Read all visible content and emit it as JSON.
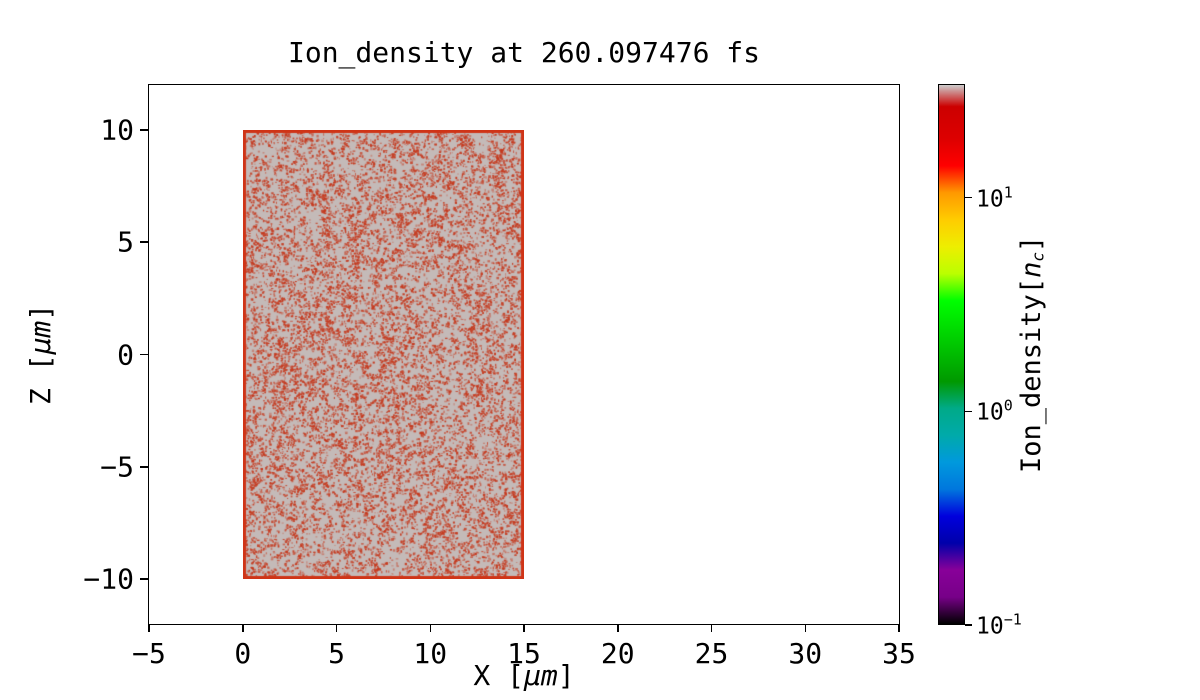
{
  "figure": {
    "background": "#ffffff"
  },
  "chart_data": {
    "type": "heatmap",
    "title": "Ion_density at 260.097476 fs",
    "xlabel": "X [μm]",
    "ylabel": "Z [μm]",
    "xlabel_parts": {
      "prefix": "X [",
      "unit": "μm",
      "suffix": "]"
    },
    "ylabel_parts": {
      "prefix": "Z [",
      "unit": "μm",
      "suffix": "]"
    },
    "xlim": [
      -5,
      35
    ],
    "ylim": [
      -12,
      12
    ],
    "grid": false,
    "axis_color": "#000000",
    "x_ticks": [
      {
        "v": -5,
        "label": "−5"
      },
      {
        "v": 0,
        "label": "0"
      },
      {
        "v": 5,
        "label": "5"
      },
      {
        "v": 10,
        "label": "10"
      },
      {
        "v": 15,
        "label": "15"
      },
      {
        "v": 20,
        "label": "20"
      },
      {
        "v": 25,
        "label": "25"
      },
      {
        "v": 30,
        "label": "30"
      },
      {
        "v": 35,
        "label": "35"
      }
    ],
    "y_ticks": [
      {
        "v": 10,
        "label": "10"
      },
      {
        "v": 5,
        "label": "5"
      },
      {
        "v": 0,
        "label": "0"
      },
      {
        "v": -5,
        "label": "−5"
      },
      {
        "v": -10,
        "label": "−10"
      }
    ],
    "region": {
      "x_min": 0,
      "x_max": 15,
      "z_min": -10,
      "z_max": 10,
      "description": "Uniform rectangular plasma slab at near-maximum ion density rendered as gray (top of colormap) with dense random red speckle noise and a solid red edge",
      "base_color": "#c4bab8",
      "speckle_color": "#c63a1f",
      "edge_color": "#cf3417"
    },
    "colorbar": {
      "label": "Ion_density[n_c]",
      "label_parts": {
        "prefix": "Ion_density[",
        "var": "n",
        "sub": "c",
        "suffix": "]"
      },
      "scale": "log",
      "vmin": 0.1,
      "vmax": 34,
      "colormap": "nipy_spectral",
      "ticks": [
        {
          "value": 10,
          "base": "10",
          "exp": "1"
        },
        {
          "value": 1,
          "base": "10",
          "exp": "0"
        },
        {
          "value": 0.1,
          "base": "10",
          "exp": "−1"
        }
      ],
      "gradient_stops": [
        {
          "pos": 0.0,
          "color": "#000000"
        },
        {
          "pos": 0.05,
          "color": "#770088"
        },
        {
          "pos": 0.1,
          "color": "#880099"
        },
        {
          "pos": 0.15,
          "color": "#0000aa"
        },
        {
          "pos": 0.2,
          "color": "#0000dd"
        },
        {
          "pos": 0.25,
          "color": "#0077dd"
        },
        {
          "pos": 0.3,
          "color": "#0099dd"
        },
        {
          "pos": 0.35,
          "color": "#00aaaa"
        },
        {
          "pos": 0.4,
          "color": "#00aa88"
        },
        {
          "pos": 0.45,
          "color": "#009900"
        },
        {
          "pos": 0.5,
          "color": "#00bb00"
        },
        {
          "pos": 0.55,
          "color": "#00dd00"
        },
        {
          "pos": 0.6,
          "color": "#00ff00"
        },
        {
          "pos": 0.65,
          "color": "#bbff00"
        },
        {
          "pos": 0.7,
          "color": "#eeee00"
        },
        {
          "pos": 0.75,
          "color": "#ffcc00"
        },
        {
          "pos": 0.8,
          "color": "#ff9900"
        },
        {
          "pos": 0.85,
          "color": "#ff0000"
        },
        {
          "pos": 0.9,
          "color": "#dd0000"
        },
        {
          "pos": 0.96,
          "color": "#cc0000"
        },
        {
          "pos": 1.0,
          "color": "#cccccc"
        }
      ]
    }
  }
}
